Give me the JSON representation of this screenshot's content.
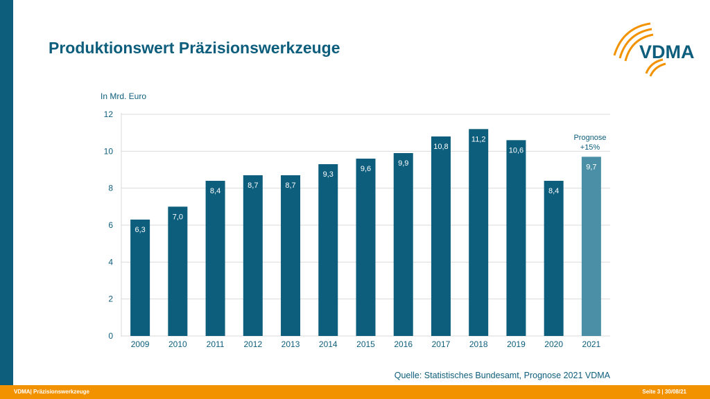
{
  "slide": {
    "title": "Produktionswert Präzisionswerkzeuge",
    "logo_text": "VDMA",
    "footer_left": "VDMA| Präzisionswerkzeuge",
    "footer_right": "Seite 3 | 30/08/21"
  },
  "colors": {
    "brand_blue": "#0d5d7c",
    "forecast_bar": "#4a8fa6",
    "accent_orange": "#f39200"
  },
  "chart_data": {
    "type": "bar",
    "ylabel": "In Mrd. Euro",
    "categories": [
      "2009",
      "2010",
      "2011",
      "2012",
      "2013",
      "2014",
      "2015",
      "2016",
      "2017",
      "2018",
      "2019",
      "2020",
      "2021"
    ],
    "values": [
      6.3,
      7.0,
      8.4,
      8.7,
      8.7,
      9.3,
      9.6,
      9.9,
      10.8,
      11.2,
      10.6,
      8.4,
      9.7
    ],
    "value_labels": [
      "6,3",
      "7,0",
      "8,4",
      "8,7",
      "8,7",
      "9,3",
      "9,6",
      "9,9",
      "10,8",
      "11,2",
      "10,6",
      "8,4",
      "9,7"
    ],
    "ylim": [
      0,
      12
    ],
    "yticks": [
      0,
      2,
      4,
      6,
      8,
      10,
      12
    ],
    "grid": true,
    "forecast_index": 12,
    "annotation": {
      "line1": "Prognose",
      "line2": "+15%"
    },
    "source": "Quelle: Statistisches Bundesamt, Prognose 2021 VDMA"
  }
}
